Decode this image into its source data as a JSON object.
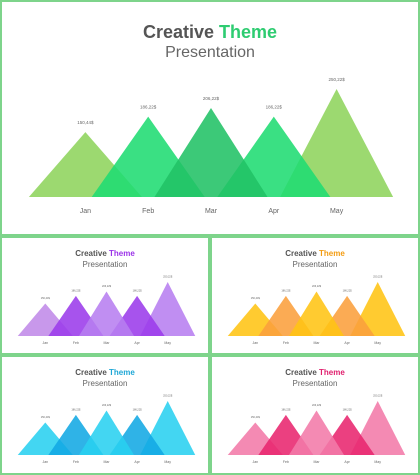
{
  "title": {
    "word1": "Creative",
    "word2": "Theme",
    "subtitle": "Presentation"
  },
  "chart_data": {
    "type": "area",
    "categories": [
      "Jan",
      "Feb",
      "Mar",
      "Apr",
      "May"
    ],
    "values": [
      150.4,
      186.2,
      206.2,
      186.2,
      250.2
    ],
    "data_labels": [
      "150,44$",
      "186,22$",
      "206,22$",
      "186,22$",
      "250,22$"
    ],
    "note": "Triangular peak (mountain) chart; each category is an overlapping triangle whose height is its value."
  },
  "variants": [
    {
      "id": "main",
      "accent": "#2ecc71",
      "colors": [
        "#8ed45c",
        "#1fdc72",
        "#21c265",
        "#1fdc72",
        "#8ed45c"
      ]
    },
    {
      "id": "purple",
      "accent": "#9b33e8",
      "colors": [
        "#c08ae8",
        "#9b3bea",
        "#b77ef0",
        "#9b3bea",
        "#b77ef0"
      ]
    },
    {
      "id": "orange",
      "accent": "#f39c12",
      "colors": [
        "#ffc413",
        "#fb9f3c",
        "#ffc413",
        "#fb9f3c",
        "#ffc413"
      ]
    },
    {
      "id": "blue",
      "accent": "#1ea7d6",
      "colors": [
        "#29d0f0",
        "#12a8e4",
        "#29d0f0",
        "#12a8e4",
        "#29d0f0"
      ]
    },
    {
      "id": "pink",
      "accent": "#e0206e",
      "colors": [
        "#f37aa8",
        "#e8256e",
        "#f37aa8",
        "#e8256e",
        "#f37aa8"
      ]
    }
  ]
}
